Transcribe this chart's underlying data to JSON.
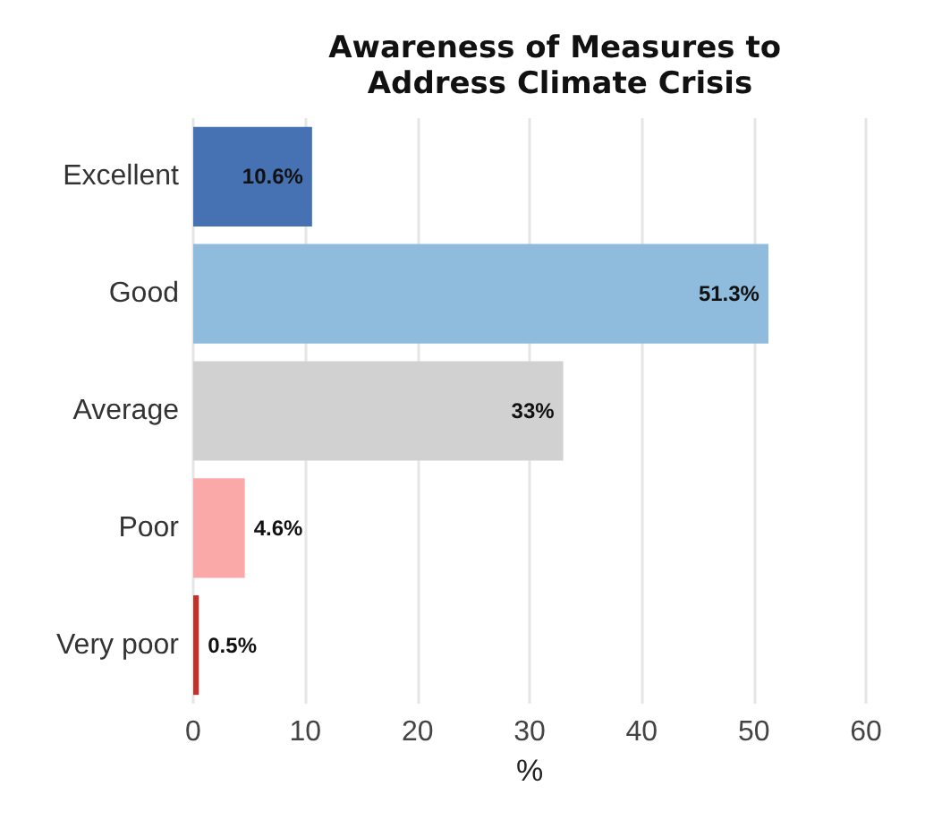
{
  "chart_data": {
    "type": "bar",
    "orientation": "horizontal",
    "title": "Awareness of Measures to Address Climate Crisis",
    "xlabel": "%",
    "categories": [
      "Excellent",
      "Good",
      "Average",
      "Poor",
      "Very poor"
    ],
    "values": [
      10.6,
      51.3,
      33,
      4.6,
      0.5
    ],
    "colors": [
      "#4672b3",
      "#8fbcdd",
      "#d1d1d1",
      "#fba8a8",
      "#c0332c"
    ],
    "value_labels": [
      "10.6%",
      "51.3%",
      "33%",
      "4.6%",
      "0.5%"
    ],
    "xlim": [
      0,
      60
    ],
    "xticks": [
      0,
      10,
      20,
      30,
      40,
      50,
      60
    ],
    "grid": "x"
  }
}
